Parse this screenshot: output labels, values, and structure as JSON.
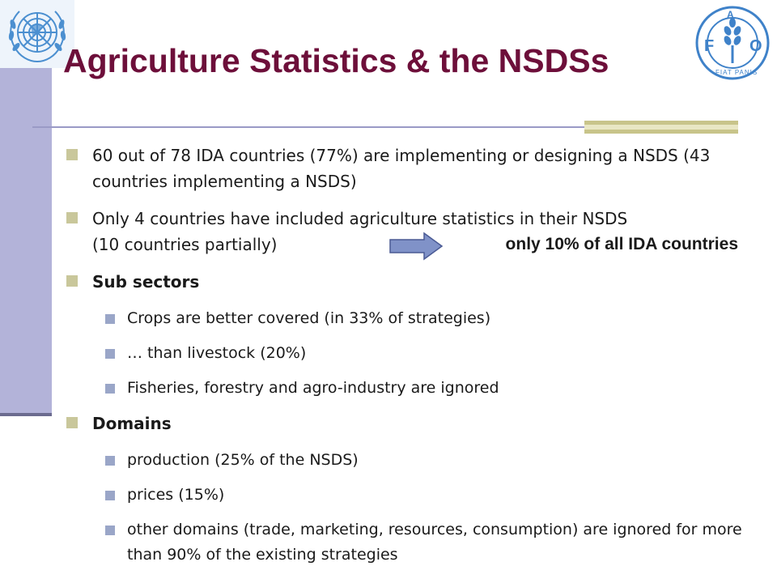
{
  "title": "Agriculture Statistics & the NSDSs",
  "bullets": [
    "60 out of 78 IDA countries (77%) are implementing or designing a NSDS (43 countries implementing a NSDS)",
    "Only 4 countries have included agriculture statistics in their NSDS",
    "(10 countries partially)",
    "only 10% of all IDA countries",
    "Sub sectors",
    "Crops are better covered (in 33% of strategies)",
    "… than livestock (20%)",
    "Fisheries, forestry and agro-industry are ignored",
    "Domains",
    "production (25% of the NSDS)",
    "prices (15%)",
    "other domains (trade, marketing, resources, consumption) are ignored for more than 90% of the existing strategies"
  ],
  "logos": {
    "left": "un-emblem-icon",
    "right": "fao-logo-icon",
    "fao_letters": [
      "F",
      "A",
      "O"
    ],
    "fao_motto": "FIAT PANIS"
  },
  "colors": {
    "title": "#6d0f3a",
    "left_bar": "#b3b3d9",
    "bullet_l1": "#c9c79b",
    "bullet_l2": "#9aa6c8",
    "un_blue": "#4b8fd0",
    "arrow": "#8092c8"
  }
}
